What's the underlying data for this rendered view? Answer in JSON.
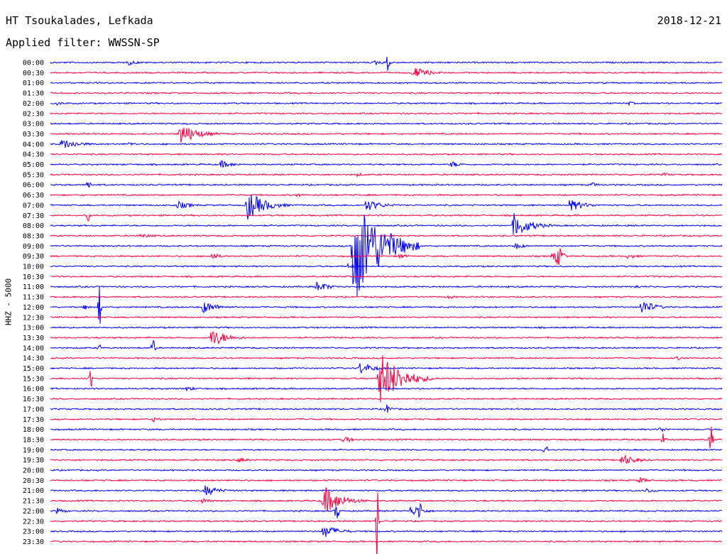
{
  "header": {
    "station": "HT Tsoukalades, Lefkada",
    "date": "2018-12-21",
    "filter_label": "Applied filter: WWSSN-SP",
    "channel_label": "HHZ - 5000"
  },
  "chart_data": {
    "type": "line",
    "chart_kind": "helicorder",
    "row_interval_minutes": 30,
    "colors": [
      "#0000ff",
      "#ff0040"
    ],
    "grid": false,
    "categories": [
      "00:00",
      "00:30",
      "01:00",
      "01:30",
      "02:00",
      "02:30",
      "03:00",
      "03:30",
      "04:00",
      "04:30",
      "05:00",
      "05:30",
      "06:00",
      "06:30",
      "07:00",
      "07:30",
      "08:00",
      "08:30",
      "09:00",
      "09:30",
      "10:00",
      "10:30",
      "11:00",
      "11:30",
      "12:00",
      "12:30",
      "13:00",
      "13:30",
      "14:00",
      "14:30",
      "15:00",
      "15:30",
      "16:00",
      "16:30",
      "17:00",
      "17:30",
      "18:00",
      "18:30",
      "19:00",
      "19:30",
      "20:00",
      "20:30",
      "21:00",
      "21:30",
      "22:00",
      "22:30",
      "23:00",
      "23:30"
    ],
    "events": [
      {
        "row": "00:00",
        "minute": 3.5,
        "amp": 4,
        "dur": 1.2,
        "spike": false
      },
      {
        "row": "00:00",
        "minute": 14.5,
        "amp": 4,
        "dur": 1.0,
        "spike": false
      },
      {
        "row": "00:00",
        "minute": 15.1,
        "amp": 16,
        "dur": 0.3,
        "spike": true
      },
      {
        "row": "00:30",
        "minute": 16.2,
        "amp": 9,
        "dur": 1.8,
        "spike": false
      },
      {
        "row": "02:00",
        "minute": 0.3,
        "amp": 3,
        "dur": 1.0,
        "spike": false
      },
      {
        "row": "02:00",
        "minute": 25.8,
        "amp": 3,
        "dur": 1.0,
        "spike": false
      },
      {
        "row": "03:30",
        "minute": 5.8,
        "amp": 16,
        "dur": 2.0,
        "spike": false
      },
      {
        "row": "04:00",
        "minute": 0.5,
        "amp": 8,
        "dur": 2.0,
        "spike": false
      },
      {
        "row": "04:00",
        "minute": 3.5,
        "amp": 3,
        "dur": 1.0,
        "spike": false
      },
      {
        "row": "05:00",
        "minute": 7.6,
        "amp": 6,
        "dur": 1.5,
        "spike": false
      },
      {
        "row": "05:00",
        "minute": 17.9,
        "amp": 5,
        "dur": 1.2,
        "spike": false
      },
      {
        "row": "05:30",
        "minute": 13.7,
        "amp": 3,
        "dur": 1.0,
        "spike": false
      },
      {
        "row": "05:30",
        "minute": 27.4,
        "amp": 3,
        "dur": 1.0,
        "spike": false
      },
      {
        "row": "06:00",
        "minute": 1.7,
        "amp": 10,
        "dur": 0.3,
        "spike": true
      },
      {
        "row": "06:00",
        "minute": 24.2,
        "amp": 4,
        "dur": 0.8,
        "spike": false
      },
      {
        "row": "06:30",
        "minute": 11.0,
        "amp": 3,
        "dur": 1.0,
        "spike": false
      },
      {
        "row": "07:00",
        "minute": 5.7,
        "amp": 6,
        "dur": 1.5,
        "spike": false
      },
      {
        "row": "07:00",
        "minute": 8.8,
        "amp": 22,
        "dur": 2.0,
        "spike": false
      },
      {
        "row": "07:00",
        "minute": 14.1,
        "amp": 9,
        "dur": 1.8,
        "spike": false
      },
      {
        "row": "07:00",
        "minute": 23.2,
        "amp": 9,
        "dur": 1.8,
        "spike": false
      },
      {
        "row": "07:30",
        "minute": 1.7,
        "amp": 9,
        "dur": 0.3,
        "spike": true
      },
      {
        "row": "08:00",
        "minute": 20.7,
        "amp": 18,
        "dur": 2.0,
        "spike": false
      },
      {
        "row": "08:30",
        "minute": 4.0,
        "amp": 3,
        "dur": 2.0,
        "spike": false
      },
      {
        "row": "09:00",
        "minute": 13.5,
        "amp": 90,
        "dur": 3.0,
        "spike": false
      },
      {
        "row": "09:00",
        "minute": 20.8,
        "amp": 5,
        "dur": 1.0,
        "spike": false
      },
      {
        "row": "09:30",
        "minute": 7.2,
        "amp": 6,
        "dur": 1.0,
        "spike": false
      },
      {
        "row": "09:30",
        "minute": 15.6,
        "amp": 4,
        "dur": 1.0,
        "spike": false
      },
      {
        "row": "09:30",
        "minute": 22.7,
        "amp": 14,
        "dur": 0.8,
        "spike": true
      },
      {
        "row": "09:30",
        "minute": 25.8,
        "amp": 4,
        "dur": 1.2,
        "spike": false
      },
      {
        "row": "10:00",
        "minute": 13.3,
        "amp": 4,
        "dur": 1.0,
        "spike": false
      },
      {
        "row": "11:00",
        "minute": 11.9,
        "amp": 8,
        "dur": 1.5,
        "spike": false
      },
      {
        "row": "11:00",
        "minute": 26.1,
        "amp": 3,
        "dur": 1.0,
        "spike": false
      },
      {
        "row": "11:30",
        "minute": 17.8,
        "amp": 3,
        "dur": 1.0,
        "spike": false
      },
      {
        "row": "12:00",
        "minute": 1.5,
        "amp": 4,
        "dur": 1.0,
        "spike": false
      },
      {
        "row": "12:00",
        "minute": 2.2,
        "amp": 35,
        "dur": 0.2,
        "spike": true
      },
      {
        "row": "12:00",
        "minute": 6.8,
        "amp": 9,
        "dur": 1.8,
        "spike": false
      },
      {
        "row": "12:00",
        "minute": 26.4,
        "amp": 12,
        "dur": 1.5,
        "spike": false
      },
      {
        "row": "13:30",
        "minute": 7.2,
        "amp": 14,
        "dur": 1.8,
        "spike": false
      },
      {
        "row": "14:00",
        "minute": 2.2,
        "amp": 6,
        "dur": 0.3,
        "spike": true
      },
      {
        "row": "14:00",
        "minute": 4.6,
        "amp": 12,
        "dur": 0.3,
        "spike": true
      },
      {
        "row": "14:30",
        "minute": 28.0,
        "amp": 3,
        "dur": 1.0,
        "spike": false
      },
      {
        "row": "15:00",
        "minute": 13.8,
        "amp": 9,
        "dur": 1.8,
        "spike": false
      },
      {
        "row": "15:30",
        "minute": 14.7,
        "amp": 40,
        "dur": 2.5,
        "spike": false
      },
      {
        "row": "15:30",
        "minute": 1.8,
        "amp": 20,
        "dur": 0.2,
        "spike": true
      },
      {
        "row": "16:00",
        "minute": 6.1,
        "amp": 4,
        "dur": 1.0,
        "spike": false
      },
      {
        "row": "17:00",
        "minute": 15.0,
        "amp": 8,
        "dur": 0.6,
        "spike": false
      },
      {
        "row": "17:30",
        "minute": 4.6,
        "amp": 4,
        "dur": 1.0,
        "spike": false
      },
      {
        "row": "18:00",
        "minute": 27.2,
        "amp": 4,
        "dur": 1.0,
        "spike": false
      },
      {
        "row": "18:30",
        "minute": 13.1,
        "amp": 6,
        "dur": 1.0,
        "spike": false
      },
      {
        "row": "18:30",
        "minute": 27.4,
        "amp": 12,
        "dur": 0.3,
        "spike": true
      },
      {
        "row": "18:30",
        "minute": 29.5,
        "amp": 22,
        "dur": 0.3,
        "spike": true
      },
      {
        "row": "19:00",
        "minute": 22.1,
        "amp": 14,
        "dur": 0.3,
        "spike": true
      },
      {
        "row": "19:30",
        "minute": 8.4,
        "amp": 4,
        "dur": 1.2,
        "spike": false
      },
      {
        "row": "19:30",
        "minute": 25.5,
        "amp": 9,
        "dur": 1.8,
        "spike": false
      },
      {
        "row": "20:30",
        "minute": 26.3,
        "amp": 5,
        "dur": 1.0,
        "spike": false
      },
      {
        "row": "21:00",
        "minute": 6.9,
        "amp": 8,
        "dur": 1.8,
        "spike": false
      },
      {
        "row": "21:00",
        "minute": 26.6,
        "amp": 4,
        "dur": 1.2,
        "spike": false
      },
      {
        "row": "21:30",
        "minute": 6.8,
        "amp": 4,
        "dur": 1.2,
        "spike": false
      },
      {
        "row": "21:30",
        "minute": 12.2,
        "amp": 22,
        "dur": 2.0,
        "spike": false
      },
      {
        "row": "22:00",
        "minute": 0.3,
        "amp": 5,
        "dur": 1.0,
        "spike": false
      },
      {
        "row": "22:00",
        "minute": 16.1,
        "amp": 8,
        "dur": 1.5,
        "spike": false
      },
      {
        "row": "22:00",
        "minute": 12.8,
        "amp": 16,
        "dur": 0.3,
        "spike": true
      },
      {
        "row": "22:00",
        "minute": 16.5,
        "amp": 18,
        "dur": 0.3,
        "spike": true
      },
      {
        "row": "22:30",
        "minute": 14.6,
        "amp": 70,
        "dur": 0.2,
        "spike": true
      },
      {
        "row": "23:00",
        "minute": 12.2,
        "amp": 10,
        "dur": 1.8,
        "spike": false
      }
    ]
  }
}
